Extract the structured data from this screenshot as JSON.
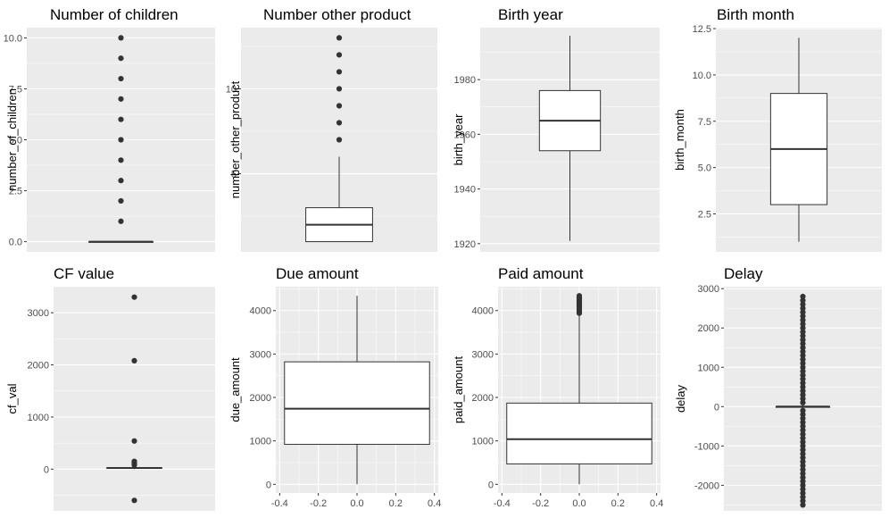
{
  "colors": {
    "panel_bg": "#EBEBEB",
    "grid": "#FFFFFF",
    "box_line": "#333333",
    "box_fill": "#FFFFFF",
    "tick_text": "#4D4D4D"
  },
  "chart_data": [
    {
      "type": "box",
      "title": "Number of children",
      "ylabel": "number_of_children",
      "ylim": [
        -0.5,
        10.5
      ],
      "yticks": [
        0,
        2.5,
        5,
        7.5,
        10
      ],
      "yticklabels": [
        "0.0",
        "2.5",
        "5.0",
        "7.5",
        "10.0"
      ],
      "box": {
        "q1": 0,
        "median": 0,
        "q3": 0,
        "whisker_low": 0,
        "whisker_high": 0
      },
      "outliers": [
        1,
        2,
        3,
        4,
        5,
        6,
        7,
        8,
        9,
        10
      ],
      "grid": true
    },
    {
      "type": "box",
      "title": "Number other product",
      "ylabel": "number_other_product",
      "ylim": [
        0.4,
        13.6
      ],
      "yticks": [
        5,
        10
      ],
      "yticklabels": [
        "5",
        "10"
      ],
      "box": {
        "q1": 1,
        "median": 2,
        "q3": 3,
        "whisker_low": 1,
        "whisker_high": 6
      },
      "outliers": [
        7,
        8,
        9,
        10,
        11,
        12,
        13
      ],
      "grid": true
    },
    {
      "type": "box",
      "title": "Birth year",
      "ylabel": "birth_year",
      "ylim": [
        1917,
        1999
      ],
      "yticks": [
        1920,
        1940,
        1960,
        1980
      ],
      "yticklabels": [
        "1920",
        "1940",
        "1960",
        "1980"
      ],
      "box": {
        "q1": 1954,
        "median": 1965,
        "q3": 1976,
        "whisker_low": 1921,
        "whisker_high": 1996
      },
      "outliers": [],
      "grid": true
    },
    {
      "type": "box",
      "title": "Birth month",
      "ylabel": "birth_month",
      "ylim": [
        0.45,
        12.55
      ],
      "yticks": [
        2.5,
        5,
        7.5,
        10,
        12.5
      ],
      "yticklabels": [
        "2.5",
        "5.0",
        "7.5",
        "10.0",
        "12.5"
      ],
      "box": {
        "q1": 3,
        "median": 6,
        "q3": 9,
        "whisker_low": 1,
        "whisker_high": 12
      },
      "outliers": [],
      "grid": true
    },
    {
      "type": "box",
      "title": "CF value",
      "ylabel": "cf_val",
      "ylim": [
        -800,
        3500
      ],
      "yticks": [
        0,
        1000,
        2000,
        3000
      ],
      "yticklabels": [
        "0",
        "1000",
        "2000",
        "3000"
      ],
      "box": {
        "q1": 15,
        "median": 22,
        "q3": 30,
        "whisker_low": 0,
        "whisker_high": 50
      },
      "outliers": [
        3300,
        2080,
        540,
        150,
        110,
        80,
        -600
      ],
      "grid": true
    },
    {
      "type": "box",
      "title": "Due amount",
      "ylabel": "due_amount",
      "ylim": [
        -200,
        4550
      ],
      "yticks": [
        0,
        1000,
        2000,
        3000,
        4000
      ],
      "yticklabels": [
        "0",
        "1000",
        "2000",
        "3000",
        "4000"
      ],
      "xlim": [
        -0.42,
        0.42
      ],
      "xticks": [
        -0.4,
        -0.2,
        0,
        0.2,
        0.4
      ],
      "xticklabels": [
        "-0.4",
        "-0.2",
        "0.0",
        "0.2",
        "0.4"
      ],
      "box": {
        "q1": 920,
        "median": 1740,
        "q3": 2820,
        "whisker_low": 0,
        "whisker_high": 4340
      },
      "outliers": [],
      "grid": true
    },
    {
      "type": "box",
      "title": "Paid amount",
      "ylabel": "paid_amount",
      "ylim": [
        -200,
        4550
      ],
      "yticks": [
        0,
        1000,
        2000,
        3000,
        4000
      ],
      "yticklabels": [
        "0",
        "1000",
        "2000",
        "3000",
        "4000"
      ],
      "xlim": [
        -0.42,
        0.42
      ],
      "xticks": [
        -0.4,
        -0.2,
        0,
        0.2,
        0.4
      ],
      "xticklabels": [
        "-0.4",
        "-0.2",
        "0.0",
        "0.2",
        "0.4"
      ],
      "box": {
        "q1": 470,
        "median": 1040,
        "q3": 1870,
        "whisker_low": 0,
        "whisker_high": 3920
      },
      "outliers": [
        3940,
        3980,
        4020,
        4060,
        4100,
        4140,
        4180,
        4220,
        4260,
        4300,
        4340
      ],
      "grid": true
    },
    {
      "type": "box",
      "title": "Delay",
      "ylabel": "delay",
      "ylim": [
        -2650,
        3050
      ],
      "yticks": [
        -2000,
        -1000,
        0,
        1000,
        2000,
        3000
      ],
      "yticklabels": [
        "-2000",
        "-1000",
        "0",
        "1000",
        "2000",
        "3000"
      ],
      "box": {
        "q1": 0,
        "median": 0,
        "q3": 0,
        "whisker_low": -60,
        "whisker_high": 60
      },
      "outliers": [
        100,
        200,
        300,
        400,
        500,
        600,
        700,
        800,
        900,
        1000,
        1100,
        1200,
        1300,
        1400,
        1500,
        1600,
        1700,
        1800,
        1900,
        2000,
        2100,
        2200,
        2300,
        2400,
        2500,
        2600,
        2700,
        2800,
        -100,
        -200,
        -300,
        -400,
        -500,
        -600,
        -700,
        -800,
        -900,
        -1000,
        -1100,
        -1200,
        -1300,
        -1400,
        -1500,
        -1600,
        -1700,
        -1800,
        -1900,
        -2000,
        -2100,
        -2200,
        -2300,
        -2400,
        -2500
      ],
      "grid": true
    }
  ]
}
